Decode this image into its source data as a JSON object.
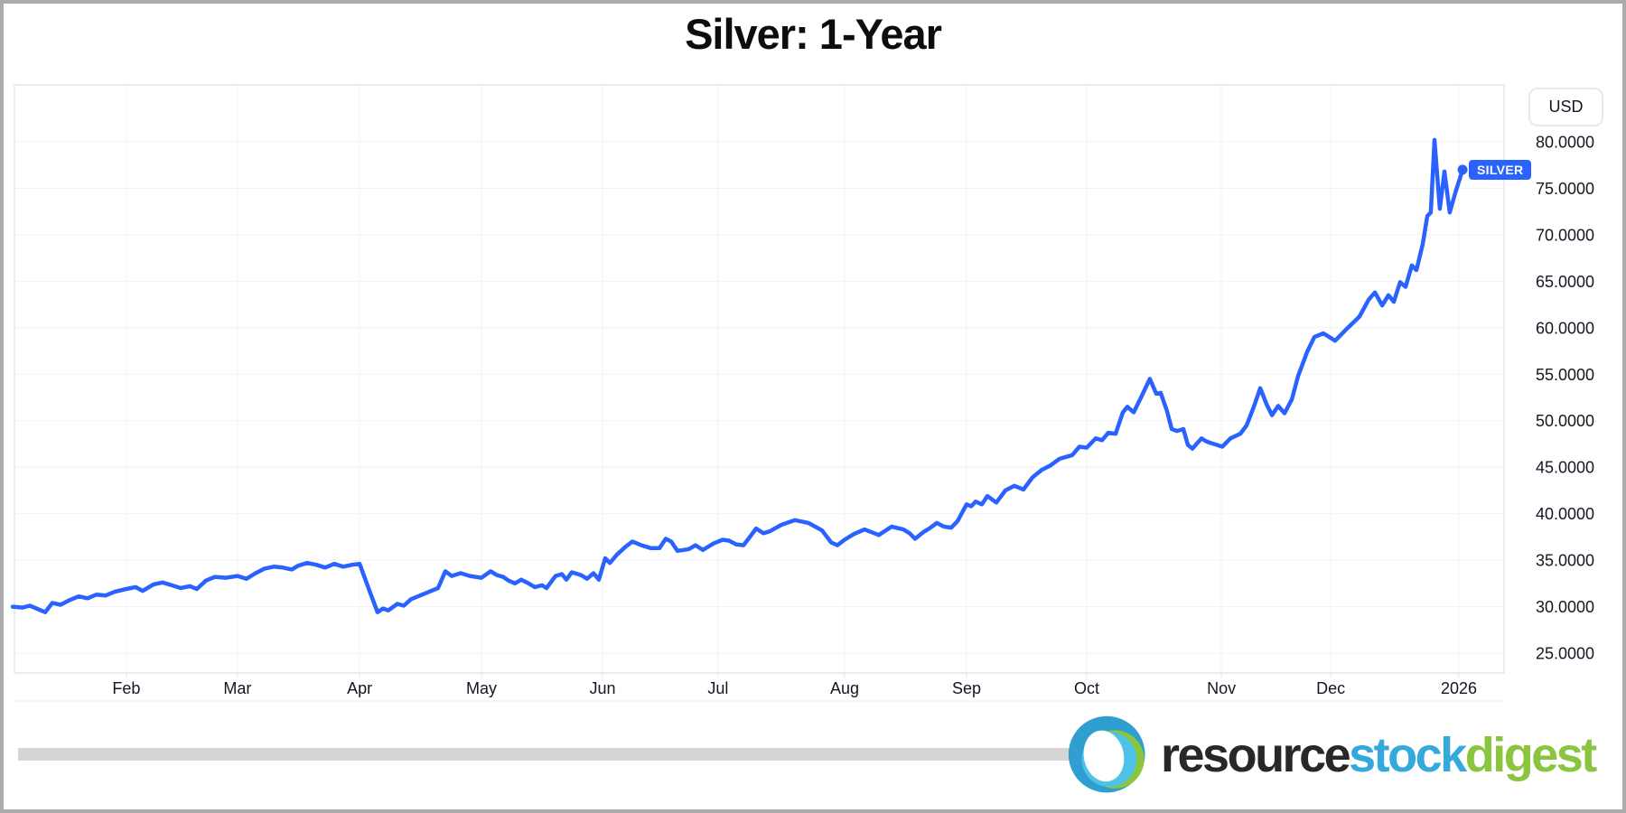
{
  "page": {
    "title": "Silver: 1-Year"
  },
  "badges": {
    "currency": "USD",
    "series": "SILVER"
  },
  "logo": {
    "part1": "resource",
    "part2": "stock",
    "part3": "digest",
    "ring_blue": "#2E9FD0",
    "ring_light_blue": "#4FC2E8",
    "ring_green": "#8CC63F",
    "text_dark": "#26282A",
    "text_blue": "#35A8DC",
    "text_green": "#8BC53F"
  },
  "chart_data": {
    "type": "line",
    "title": "Silver: 1-Year",
    "series": "SILVER",
    "currency": "USD",
    "line_color": "#2962FF",
    "grid_color": "#f2f3f7",
    "border_color": "#e3e5ea",
    "label_color": "#131722",
    "legend_position": "right-of-line-end",
    "grid": true,
    "y_axis": {
      "side": "right",
      "tick_values": [
        80,
        75,
        70,
        65,
        60,
        55,
        50,
        45,
        40,
        35,
        30,
        25
      ],
      "tick_labels": [
        "80.0000",
        "75.0000",
        "70.0000",
        "65.0000",
        "60.0000",
        "55.0000",
        "50.0000",
        "45.0000",
        "40.0000",
        "35.0000",
        "30.0000",
        "25.0000"
      ],
      "range_shown": [
        22.8,
        86.1
      ]
    },
    "x_axis": {
      "ticks": [
        {
          "label": "Feb",
          "pct": 7.67
        },
        {
          "label": "Mar",
          "pct": 15.16
        },
        {
          "label": "Apr",
          "pct": 23.39
        },
        {
          "label": "May",
          "pct": 31.61
        },
        {
          "label": "Jun",
          "pct": 39.77
        },
        {
          "label": "Jul",
          "pct": 47.56
        },
        {
          "label": "Aug",
          "pct": 56.09
        },
        {
          "label": "Sep",
          "pct": 64.31
        },
        {
          "label": "Oct",
          "pct": 72.41
        },
        {
          "label": "Nov",
          "pct": 81.49
        },
        {
          "label": "Dec",
          "pct": 88.86
        },
        {
          "label": "2026",
          "pct": 97.5
        }
      ]
    },
    "points": [
      [
        0,
        30.0
      ],
      [
        0.67,
        29.9
      ],
      [
        1.16,
        30.1
      ],
      [
        2.19,
        29.4
      ],
      [
        2.68,
        30.4
      ],
      [
        3.23,
        30.2
      ],
      [
        3.84,
        30.7
      ],
      [
        4.45,
        31.1
      ],
      [
        5.05,
        30.9
      ],
      [
        5.66,
        31.3
      ],
      [
        6.27,
        31.2
      ],
      [
        6.88,
        31.6
      ],
      [
        7.67,
        31.9
      ],
      [
        8.28,
        32.1
      ],
      [
        8.77,
        31.7
      ],
      [
        9.5,
        32.4
      ],
      [
        10.11,
        32.6
      ],
      [
        10.72,
        32.3
      ],
      [
        11.33,
        32.0
      ],
      [
        11.94,
        32.2
      ],
      [
        12.42,
        31.9
      ],
      [
        13.03,
        32.8
      ],
      [
        13.64,
        33.2
      ],
      [
        14.37,
        33.1
      ],
      [
        15.16,
        33.3
      ],
      [
        15.77,
        33.0
      ],
      [
        16.38,
        33.6
      ],
      [
        16.99,
        34.1
      ],
      [
        17.6,
        34.3
      ],
      [
        18.21,
        34.2
      ],
      [
        18.82,
        34.0
      ],
      [
        19.24,
        34.4
      ],
      [
        19.85,
        34.7
      ],
      [
        20.46,
        34.5
      ],
      [
        21.07,
        34.2
      ],
      [
        21.68,
        34.6
      ],
      [
        22.29,
        34.3
      ],
      [
        22.9,
        34.5
      ],
      [
        23.39,
        34.6
      ],
      [
        23.99,
        32.0
      ],
      [
        24.6,
        29.4
      ],
      [
        24.97,
        29.8
      ],
      [
        25.33,
        29.6
      ],
      [
        25.94,
        30.3
      ],
      [
        26.37,
        30.1
      ],
      [
        26.86,
        30.8
      ],
      [
        27.47,
        31.2
      ],
      [
        28.08,
        31.6
      ],
      [
        28.68,
        32.0
      ],
      [
        29.17,
        33.8
      ],
      [
        29.6,
        33.3
      ],
      [
        30.21,
        33.6
      ],
      [
        30.82,
        33.3
      ],
      [
        31.61,
        33.1
      ],
      [
        32.22,
        33.8
      ],
      [
        32.64,
        33.4
      ],
      [
        33.07,
        33.2
      ],
      [
        33.43,
        32.8
      ],
      [
        33.86,
        32.5
      ],
      [
        34.29,
        32.9
      ],
      [
        34.78,
        32.5
      ],
      [
        35.2,
        32.1
      ],
      [
        35.69,
        32.3
      ],
      [
        35.99,
        32.0
      ],
      [
        36.6,
        33.3
      ],
      [
        37.03,
        33.5
      ],
      [
        37.33,
        32.9
      ],
      [
        37.7,
        33.7
      ],
      [
        38.31,
        33.4
      ],
      [
        38.73,
        33.0
      ],
      [
        39.16,
        33.6
      ],
      [
        39.52,
        32.9
      ],
      [
        39.95,
        35.2
      ],
      [
        40.26,
        34.7
      ],
      [
        40.74,
        35.6
      ],
      [
        41.29,
        36.4
      ],
      [
        41.78,
        37.0
      ],
      [
        42.39,
        36.6
      ],
      [
        43.0,
        36.3
      ],
      [
        43.61,
        36.3
      ],
      [
        44.03,
        37.3
      ],
      [
        44.4,
        37.0
      ],
      [
        44.82,
        36.0
      ],
      [
        45.25,
        36.1
      ],
      [
        45.61,
        36.2
      ],
      [
        46.04,
        36.6
      ],
      [
        46.53,
        36.1
      ],
      [
        47.26,
        36.8
      ],
      [
        47.87,
        37.2
      ],
      [
        48.29,
        37.1
      ],
      [
        48.78,
        36.7
      ],
      [
        49.27,
        36.6
      ],
      [
        49.7,
        37.5
      ],
      [
        50.12,
        38.4
      ],
      [
        50.61,
        37.9
      ],
      [
        51.04,
        38.1
      ],
      [
        51.83,
        38.8
      ],
      [
        52.74,
        39.3
      ],
      [
        53.65,
        39.0
      ],
      [
        54.57,
        38.2
      ],
      [
        55.18,
        36.9
      ],
      [
        55.6,
        36.6
      ],
      [
        56.09,
        37.2
      ],
      [
        56.7,
        37.8
      ],
      [
        57.43,
        38.3
      ],
      [
        57.92,
        38.0
      ],
      [
        58.4,
        37.7
      ],
      [
        59.26,
        38.6
      ],
      [
        60.05,
        38.3
      ],
      [
        60.47,
        37.9
      ],
      [
        60.84,
        37.3
      ],
      [
        61.39,
        38.0
      ],
      [
        61.88,
        38.5
      ],
      [
        62.3,
        39.0
      ],
      [
        62.79,
        38.6
      ],
      [
        63.28,
        38.5
      ],
      [
        63.7,
        39.2
      ],
      [
        64.31,
        41.0
      ],
      [
        64.62,
        40.8
      ],
      [
        64.92,
        41.3
      ],
      [
        65.35,
        41.0
      ],
      [
        65.71,
        41.9
      ],
      [
        66.14,
        41.4
      ],
      [
        66.32,
        41.2
      ],
      [
        66.93,
        42.5
      ],
      [
        67.54,
        43.0
      ],
      [
        68.15,
        42.6
      ],
      [
        68.76,
        43.9
      ],
      [
        69.37,
        44.7
      ],
      [
        69.98,
        45.2
      ],
      [
        70.58,
        45.9
      ],
      [
        71.44,
        46.3
      ],
      [
        71.92,
        47.2
      ],
      [
        72.41,
        47.1
      ],
      [
        73.02,
        48.1
      ],
      [
        73.45,
        47.9
      ],
      [
        73.87,
        48.7
      ],
      [
        74.36,
        48.6
      ],
      [
        74.85,
        50.9
      ],
      [
        75.15,
        51.5
      ],
      [
        75.58,
        50.9
      ],
      [
        76.07,
        52.5
      ],
      [
        76.67,
        54.5
      ],
      [
        77.1,
        52.9
      ],
      [
        77.4,
        53.0
      ],
      [
        77.83,
        51.0
      ],
      [
        78.14,
        49.1
      ],
      [
        78.5,
        48.9
      ],
      [
        78.93,
        49.1
      ],
      [
        79.23,
        47.4
      ],
      [
        79.54,
        47.0
      ],
      [
        80.15,
        48.1
      ],
      [
        80.45,
        47.8
      ],
      [
        80.76,
        47.6
      ],
      [
        81.18,
        47.4
      ],
      [
        81.55,
        47.2
      ],
      [
        82.1,
        48.1
      ],
      [
        82.77,
        48.6
      ],
      [
        83.19,
        49.5
      ],
      [
        83.68,
        51.5
      ],
      [
        84.11,
        53.5
      ],
      [
        84.53,
        51.8
      ],
      [
        84.9,
        50.6
      ],
      [
        85.32,
        51.6
      ],
      [
        85.75,
        50.8
      ],
      [
        86.24,
        52.3
      ],
      [
        86.66,
        54.8
      ],
      [
        87.27,
        57.4
      ],
      [
        87.76,
        59.0
      ],
      [
        88.37,
        59.4
      ],
      [
        89.16,
        58.6
      ],
      [
        89.89,
        59.8
      ],
      [
        90.8,
        61.2
      ],
      [
        91.41,
        63.0
      ],
      [
        91.84,
        63.8
      ],
      [
        92.33,
        62.4
      ],
      [
        92.75,
        63.5
      ],
      [
        93.12,
        62.8
      ],
      [
        93.54,
        64.9
      ],
      [
        93.91,
        64.4
      ],
      [
        94.33,
        66.7
      ],
      [
        94.64,
        66.2
      ],
      [
        95.07,
        69.0
      ],
      [
        95.37,
        72.0
      ],
      [
        95.61,
        72.4
      ],
      [
        95.86,
        80.2
      ],
      [
        96.22,
        72.8
      ],
      [
        96.53,
        76.8
      ],
      [
        96.89,
        72.4
      ],
      [
        97.26,
        74.5
      ],
      [
        97.75,
        77.0
      ]
    ]
  }
}
